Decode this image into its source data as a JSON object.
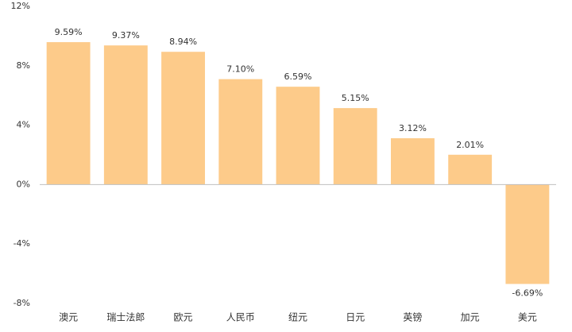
{
  "chart_data": {
    "type": "bar",
    "categories": [
      "澳元",
      "瑞士法郎",
      "欧元",
      "人民币",
      "纽元",
      "日元",
      "英镑",
      "加元",
      "美元"
    ],
    "values": [
      9.59,
      9.37,
      8.94,
      7.1,
      6.59,
      5.15,
      3.12,
      2.01,
      -6.69
    ],
    "value_labels": [
      "9.59%",
      "9.37%",
      "8.94%",
      "7.10%",
      "6.59%",
      "5.15%",
      "3.12%",
      "2.01%",
      "-6.69%"
    ],
    "color": "#fdcb8a",
    "ylim": [
      -8,
      12
    ],
    "yticks": [
      {
        "value": -8,
        "label": "-8%"
      },
      {
        "value": -4,
        "label": "-4%"
      },
      {
        "value": 0,
        "label": "0%"
      },
      {
        "value": 4,
        "label": "4%"
      },
      {
        "value": 8,
        "label": "8%"
      },
      {
        "value": 12,
        "label": "12%"
      }
    ],
    "grid": false
  }
}
